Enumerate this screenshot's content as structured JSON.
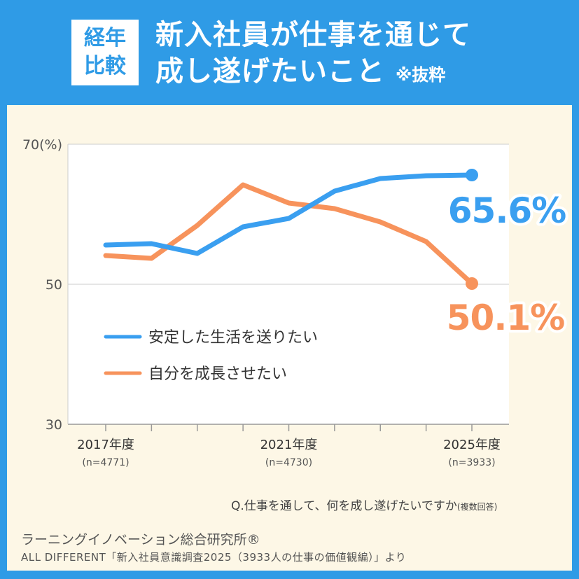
{
  "header": {
    "badge_line1": "経年",
    "badge_line2": "比較",
    "title_line1": "新入社員が仕事を通じて",
    "title_line2": "成し遂げたいこと",
    "title_note": "※抜粋"
  },
  "colors": {
    "header_bg": "#2f9be6",
    "panel_bg": "#fdf7e6",
    "series_blue": "#3a9ff0",
    "series_orange": "#f7935c"
  },
  "chart_data": {
    "type": "line",
    "ylim": [
      30,
      70
    ],
    "yticks": [
      {
        "value": 70,
        "label": "70(%)"
      },
      {
        "value": 50,
        "label": "50"
      },
      {
        "value": 30,
        "label": "30"
      }
    ],
    "x": [
      2017,
      2018,
      2019,
      2020,
      2021,
      2022,
      2023,
      2024,
      2025
    ],
    "xlabels": [
      {
        "year": "2017年度",
        "n": "(n=4771)"
      },
      {
        "year": "2021年度",
        "n": "(n=4730)"
      },
      {
        "year": "2025年度",
        "n": "(n=3933)"
      }
    ],
    "grid": true,
    "legend": "center-left",
    "series": [
      {
        "name": "安定した生活を送りたい",
        "color": "#3a9ff0",
        "values": [
          55.6,
          55.8,
          54.4,
          58.2,
          59.4,
          63.3,
          65.1,
          65.5,
          65.6
        ],
        "end_label": "65.6%"
      },
      {
        "name": "自分を成長させたい",
        "color": "#f7935c",
        "values": [
          54.1,
          53.7,
          58.4,
          64.2,
          61.6,
          60.8,
          58.9,
          56.1,
          50.1
        ],
        "end_label": "50.1%"
      }
    ]
  },
  "footer": {
    "question": "Q.仕事を通して、何を成し遂げたいですか",
    "question_note": "(複数回答)",
    "source_line1": "ラーニングイノベーション総合研究所®",
    "source_line2": "ALL DIFFERENT「新入社員意識調査2025（3933人の仕事の価値観編）」より"
  }
}
